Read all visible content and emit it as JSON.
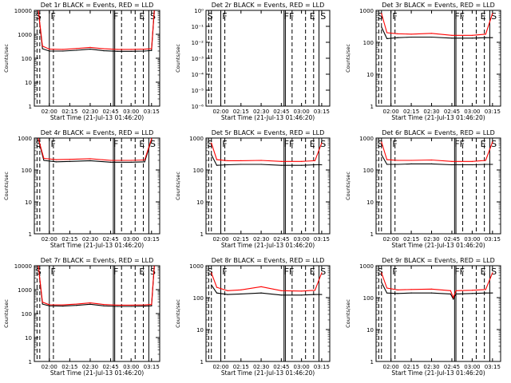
{
  "chart_data": [
    {
      "type": "line",
      "title": "Det 1r BLACK = Events, RED = LLD",
      "xlabel": "Start Time (21-Jul-13 01:46:20)",
      "ylabel": "Counts/sec",
      "yscale": "log",
      "ylim": [
        1,
        10000
      ],
      "yticks": [
        "1",
        "10",
        "100",
        "1000",
        "10000"
      ],
      "xticks": [
        "02:00",
        "02:15",
        "02:30",
        "02:45",
        "03:00",
        "03:15"
      ],
      "annotations": [
        "S",
        "F",
        "F",
        "E",
        "S"
      ],
      "series": [
        {
          "name": "Events",
          "color": "#000000",
          "x": [
            "01:52",
            "01:55",
            "02:00",
            "02:10",
            "02:20",
            "02:30",
            "02:40",
            "02:50",
            "03:00",
            "03:10",
            "03:15",
            "03:17"
          ],
          "values": [
            9000,
            250,
            200,
            200,
            215,
            240,
            205,
            195,
            195,
            200,
            210,
            9000
          ]
        },
        {
          "name": "LLD",
          "color": "#ff0000",
          "x": [
            "01:52",
            "01:55",
            "02:00",
            "02:10",
            "02:20",
            "02:30",
            "02:40",
            "02:50",
            "03:00",
            "03:10",
            "03:15",
            "03:17"
          ],
          "values": [
            9500,
            320,
            240,
            235,
            255,
            285,
            250,
            235,
            235,
            240,
            250,
            9500
          ]
        }
      ]
    },
    {
      "type": "line",
      "title": "Det 2r BLACK = Events, RED = LLD",
      "xlabel": "Start Time (21-Jul-13 01:46:20)",
      "ylabel": "Counts/sec",
      "yscale": "log",
      "ylim": [
        1,
        1e-06
      ],
      "yticks": [
        "10⁰",
        "10⁻¹",
        "10⁻²",
        "10⁻³",
        "10⁻⁴",
        "10⁻⁵",
        "10⁻⁶"
      ],
      "xticks": [
        "02:00",
        "02:15",
        "02:30",
        "02:45",
        "03:00",
        "03:15"
      ],
      "annotations": [
        "S",
        "F",
        "FF",
        "E",
        "S"
      ],
      "series": []
    },
    {
      "type": "line",
      "title": "Det 3r BLACK = Events, RED = LLD",
      "xlabel": "Start Time (21-Jul-13 01:46:20)",
      "ylabel": "Counts/sec",
      "yscale": "log",
      "ylim": [
        1,
        1000
      ],
      "yticks": [
        "1",
        "10",
        "100",
        "1000"
      ],
      "xticks": [
        "02:00",
        "02:15",
        "02:30",
        "02:45",
        "03:00",
        "03:15"
      ],
      "annotations": [
        "S",
        "F",
        "FF",
        "E",
        "S"
      ],
      "series": [
        {
          "name": "Events",
          "color": "#000000",
          "x": [
            "01:53",
            "01:57",
            "02:05",
            "02:15",
            "02:30",
            "02:45",
            "03:00",
            "03:10",
            "03:15"
          ],
          "values": [
            300,
            130,
            140,
            145,
            145,
            135,
            135,
            140,
            140
          ]
        },
        {
          "name": "LLD",
          "color": "#ff0000",
          "x": [
            "01:53",
            "01:57",
            "02:05",
            "02:15",
            "02:30",
            "02:45",
            "03:00",
            "03:10",
            "03:15"
          ],
          "values": [
            800,
            200,
            185,
            180,
            190,
            165,
            165,
            180,
            800
          ]
        }
      ]
    },
    {
      "type": "line",
      "title": "Det 4r BLACK = Events, RED = LLD",
      "xlabel": "Start Time (21-Jul-13 01:46:20)",
      "ylabel": "Counts/sec",
      "yscale": "log",
      "ylim": [
        1,
        1000
      ],
      "yticks": [
        "1",
        "10",
        "100",
        "1000"
      ],
      "xticks": [
        "02:00",
        "02:15",
        "02:30",
        "02:45",
        "03:00",
        "03:15"
      ],
      "annotations": [
        "S",
        "F",
        "F",
        "E",
        "S"
      ],
      "series": [
        {
          "name": "Events",
          "color": "#000000",
          "x": [
            "01:52",
            "01:56",
            "02:05",
            "02:15",
            "02:30",
            "02:45",
            "03:00",
            "03:10",
            "03:15"
          ],
          "values": [
            900,
            200,
            180,
            185,
            195,
            175,
            175,
            180,
            900
          ]
        },
        {
          "name": "LLD",
          "color": "#ff0000",
          "x": [
            "01:52",
            "01:56",
            "02:05",
            "02:15",
            "02:30",
            "02:45",
            "03:00",
            "03:10",
            "03:15"
          ],
          "values": [
            950,
            230,
            210,
            215,
            225,
            200,
            200,
            205,
            950
          ]
        }
      ]
    },
    {
      "type": "line",
      "title": "Det 5r BLACK = Events, RED = LLD",
      "xlabel": "Start Time (21-Jul-13 01:46:20)",
      "ylabel": "Counts/sec",
      "yscale": "log",
      "ylim": [
        1,
        1000
      ],
      "yticks": [
        "1",
        "10",
        "100",
        "1000"
      ],
      "xticks": [
        "02:00",
        "02:15",
        "02:30",
        "02:45",
        "03:00",
        "03:15"
      ],
      "annotations": [
        "S",
        "F",
        "FF",
        "E",
        "S"
      ],
      "series": [
        {
          "name": "Events",
          "color": "#000000",
          "x": [
            "01:53",
            "01:57",
            "02:05",
            "02:15",
            "02:30",
            "02:45",
            "03:00",
            "03:10",
            "03:15"
          ],
          "values": [
            300,
            140,
            145,
            150,
            150,
            140,
            140,
            145,
            145
          ]
        },
        {
          "name": "LLD",
          "color": "#ff0000",
          "x": [
            "01:53",
            "01:57",
            "02:05",
            "02:15",
            "02:30",
            "02:45",
            "03:00",
            "03:10",
            "03:15"
          ],
          "values": [
            700,
            210,
            195,
            195,
            200,
            185,
            185,
            195,
            700
          ]
        }
      ]
    },
    {
      "type": "line",
      "title": "Det 6r BLACK = Events, RED = LLD",
      "xlabel": "Start Time (21-Jul-13 01:46:20)",
      "ylabel": "Counts/sec",
      "yscale": "log",
      "ylim": [
        1,
        1000
      ],
      "yticks": [
        "1",
        "10",
        "100",
        "1000"
      ],
      "xticks": [
        "02:00",
        "02:15",
        "02:30",
        "02:45",
        "03:00",
        "03:15"
      ],
      "annotations": [
        "S",
        "F",
        "FF",
        "E",
        "S"
      ],
      "series": [
        {
          "name": "Events",
          "color": "#000000",
          "x": [
            "01:53",
            "01:57",
            "02:05",
            "02:15",
            "02:30",
            "02:45",
            "03:00",
            "03:10",
            "03:15"
          ],
          "values": [
            300,
            150,
            150,
            155,
            155,
            145,
            145,
            150,
            150
          ]
        },
        {
          "name": "LLD",
          "color": "#ff0000",
          "x": [
            "01:53",
            "01:57",
            "02:05",
            "02:15",
            "02:30",
            "02:45",
            "03:00",
            "03:10",
            "03:15"
          ],
          "values": [
            750,
            210,
            200,
            200,
            205,
            185,
            185,
            200,
            750
          ]
        }
      ]
    },
    {
      "type": "line",
      "title": "Det 7r BLACK = Events, RED = LLD",
      "xlabel": "Start Time (21-Jul-13 01:46:20)",
      "ylabel": "Counts/sec",
      "yscale": "log",
      "ylim": [
        1,
        10000
      ],
      "yticks": [
        "1",
        "10",
        "100",
        "1000",
        "10000"
      ],
      "xticks": [
        "02:00",
        "02:15",
        "02:30",
        "02:45",
        "03:00",
        "03:15"
      ],
      "annotations": [
        "S",
        "F",
        "F",
        "E",
        "S"
      ],
      "series": [
        {
          "name": "Events",
          "color": "#000000",
          "x": [
            "01:52",
            "01:55",
            "02:00",
            "02:10",
            "02:20",
            "02:30",
            "02:40",
            "02:50",
            "03:00",
            "03:10",
            "03:15",
            "03:17"
          ],
          "values": [
            9000,
            250,
            210,
            205,
            220,
            245,
            210,
            200,
            200,
            205,
            210,
            9000
          ]
        },
        {
          "name": "LLD",
          "color": "#ff0000",
          "x": [
            "01:52",
            "01:55",
            "02:00",
            "02:10",
            "02:20",
            "02:30",
            "02:40",
            "02:50",
            "03:00",
            "03:10",
            "03:15",
            "03:17"
          ],
          "values": [
            9500,
            300,
            235,
            230,
            250,
            280,
            240,
            225,
            225,
            230,
            240,
            9500
          ]
        }
      ]
    },
    {
      "type": "line",
      "title": "Det 8r BLACK = Events, RED = LLD",
      "xlabel": "Start Time (21-Jul-13 01:46:20)",
      "ylabel": "Counts/sec",
      "yscale": "log",
      "ylim": [
        1,
        1000
      ],
      "yticks": [
        "1",
        "10",
        "100",
        "1000"
      ],
      "xticks": [
        "02:00",
        "02:15",
        "02:30",
        "02:45",
        "03:00",
        "03:15"
      ],
      "annotations": [
        "S",
        "F",
        "FF",
        "E",
        "S"
      ],
      "series": [
        {
          "name": "Events",
          "color": "#000000",
          "x": [
            "01:53",
            "01:57",
            "02:05",
            "02:15",
            "02:30",
            "02:45",
            "03:00",
            "03:10",
            "03:15"
          ],
          "values": [
            250,
            140,
            125,
            130,
            140,
            120,
            120,
            125,
            125
          ]
        },
        {
          "name": "LLD",
          "color": "#ff0000",
          "x": [
            "01:53",
            "01:57",
            "02:05",
            "02:15",
            "02:30",
            "02:45",
            "03:00",
            "03:10",
            "03:15"
          ],
          "values": [
            600,
            210,
            165,
            175,
            220,
            165,
            160,
            170,
            600
          ]
        }
      ]
    },
    {
      "type": "line",
      "title": "Det 9r BLACK = Events, RED = LLD",
      "xlabel": "Start Time (21-Jul-13 01:46:20)",
      "ylabel": "Counts/sec",
      "yscale": "log",
      "ylim": [
        1,
        1000
      ],
      "yticks": [
        "1",
        "10",
        "100",
        "1000"
      ],
      "xticks": [
        "02:00",
        "02:15",
        "02:30",
        "02:45",
        "03:00",
        "03:15"
      ],
      "annotations": [
        "S",
        "F",
        "FF",
        "E",
        "S"
      ],
      "series": [
        {
          "name": "Events",
          "color": "#000000",
          "x": [
            "01:53",
            "01:57",
            "02:05",
            "02:15",
            "02:30",
            "02:44",
            "02:46",
            "02:48",
            "03:00",
            "03:10",
            "03:15"
          ],
          "values": [
            300,
            140,
            135,
            140,
            140,
            130,
            90,
            130,
            135,
            140,
            140
          ]
        },
        {
          "name": "LLD",
          "color": "#ff0000",
          "x": [
            "01:53",
            "01:57",
            "02:05",
            "02:15",
            "02:30",
            "02:44",
            "02:46",
            "02:48",
            "03:00",
            "03:10",
            "03:15"
          ],
          "values": [
            600,
            200,
            175,
            180,
            185,
            165,
            100,
            165,
            170,
            180,
            600
          ]
        }
      ]
    }
  ]
}
